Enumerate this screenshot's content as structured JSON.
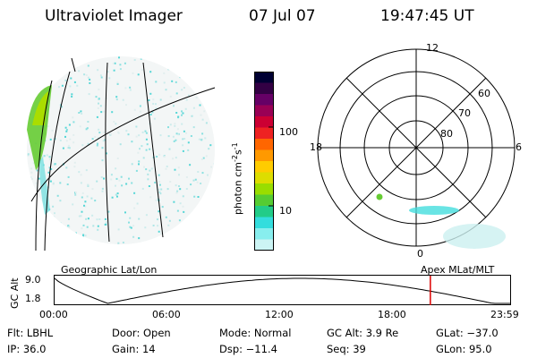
{
  "header": {
    "title": "Ultraviolet Imager",
    "date": "07 Jul 07",
    "time": "19:47:45 UT"
  },
  "colorbar": {
    "unit_text": "photon cm",
    "unit_exp1": "-2",
    "unit_s": "s",
    "unit_exp2": "-1",
    "tick_100": "100",
    "tick_10": "10",
    "colors": [
      "#000033",
      "#330044",
      "#660066",
      "#990055",
      "#cc0033",
      "#ee2222",
      "#ff6600",
      "#ff9900",
      "#ffcc00",
      "#dddd00",
      "#99dd00",
      "#55cc33",
      "#22cc88",
      "#33dddd",
      "#88eeee",
      "#ccf4f4"
    ]
  },
  "polar": {
    "mlt_labels": {
      "top": "12",
      "left": "18",
      "right": "6",
      "bottom": "0"
    },
    "lat_labels": [
      "60",
      "70",
      "80"
    ]
  },
  "geo_label": "Geographic Lat/Lon",
  "apex_label": "Apex MLat/MLT",
  "altitude_plot": {
    "y_title": "GC Alt",
    "y_max": "9.0",
    "y_min": "1.8",
    "x_ticks": [
      "00:00",
      "06:00",
      "12:00",
      "18:00",
      "23:59"
    ],
    "marker_time_hours": 19.796,
    "marker_color": "#dd0000"
  },
  "footer": {
    "filter": "Flt: LBHL",
    "door": "Door: Open",
    "mode": "Mode: Normal",
    "gc_alt": "GC Alt: 3.9 Re",
    "glat": "GLat: −37.0",
    "ip": "IP: 36.0",
    "gain": "Gain: 14",
    "dsp": "Dsp:  −11.4",
    "seq": "Seq: 39",
    "glon": "GLon:  95.0"
  }
}
